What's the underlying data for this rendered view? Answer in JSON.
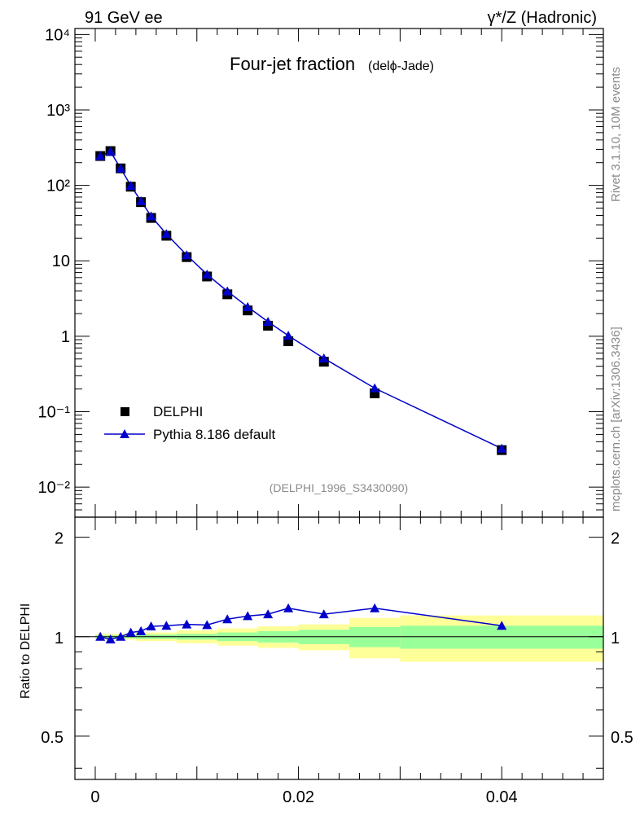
{
  "header": {
    "left": "91 GeV ee",
    "right": "γ*/Z (Hadronic)"
  },
  "side_text": {
    "rivet": "Rivet 3.1.10,  10M events",
    "mcplots": "mcplots.cern.ch [arXiv:1306.3436]"
  },
  "chart_data": [
    {
      "type": "scatter",
      "title": "Four-jet fraction",
      "subtitle": "(delϕ-Jade)",
      "analysis_label": "(DELPHI_1996_S3430090)",
      "yscale": "log",
      "ylim": [
        0.004,
        12000
      ],
      "xlim": [
        -0.002,
        0.05
      ],
      "y_tick_labels": [
        "10⁻²",
        "10⁻¹",
        "1",
        "10",
        "10²",
        "10³",
        "10⁴"
      ],
      "legend_position": "bottom-left",
      "series": [
        {
          "name": "DELPHI",
          "marker": "square",
          "color": "#000000",
          "x": [
            0.0005,
            0.0015,
            0.0025,
            0.0035,
            0.0045,
            0.0055,
            0.007,
            0.009,
            0.011,
            0.013,
            0.015,
            0.017,
            0.019,
            0.0225,
            0.0275,
            0.04
          ],
          "values": [
            245,
            285,
            168,
            96,
            60,
            37,
            21.5,
            11.2,
            6.2,
            3.6,
            2.2,
            1.38,
            0.86,
            0.46,
            0.175,
            0.031
          ]
        },
        {
          "name": "Pythia 8.186 default",
          "marker": "triangle",
          "color": "#0000cc",
          "x": [
            0.0005,
            0.0015,
            0.0025,
            0.0035,
            0.0045,
            0.0055,
            0.007,
            0.009,
            0.011,
            0.013,
            0.015,
            0.017,
            0.019,
            0.0225,
            0.0275,
            0.04
          ],
          "values": [
            245,
            280,
            168,
            99,
            62,
            39,
            22.7,
            11.9,
            6.6,
            3.95,
            2.45,
            1.56,
            1.02,
            0.51,
            0.205,
            0.0325
          ]
        }
      ]
    },
    {
      "type": "line",
      "ylabel": "Ratio to DELPHI",
      "xlabel": "",
      "ylim": [
        0.37,
        2.3
      ],
      "xlim": [
        -0.002,
        0.05
      ],
      "x_tick_labels": [
        "0",
        "0.02",
        "0.04"
      ],
      "y_tick_labels": [
        "0.5",
        "1",
        "2"
      ],
      "series": [
        {
          "name": "Pythia 8.186 default",
          "color": "#0000cc",
          "x": [
            0.0005,
            0.0015,
            0.0025,
            0.0035,
            0.0045,
            0.0055,
            0.007,
            0.009,
            0.011,
            0.013,
            0.015,
            0.017,
            0.019,
            0.0225,
            0.0275,
            0.04
          ],
          "values": [
            1.0,
            0.982,
            1.0,
            1.03,
            1.04,
            1.075,
            1.08,
            1.09,
            1.085,
            1.13,
            1.155,
            1.17,
            1.22,
            1.17,
            1.22,
            1.08
          ]
        }
      ],
      "bands": [
        {
          "x0": 0.0,
          "x1": 0.004,
          "inner": [
            0.99,
            1.01
          ],
          "outer": [
            0.98,
            1.02
          ]
        },
        {
          "x0": 0.004,
          "x1": 0.008,
          "inner": [
            0.985,
            1.015
          ],
          "outer": [
            0.97,
            1.03
          ]
        },
        {
          "x0": 0.008,
          "x1": 0.012,
          "inner": [
            0.98,
            1.02
          ],
          "outer": [
            0.955,
            1.045
          ]
        },
        {
          "x0": 0.012,
          "x1": 0.016,
          "inner": [
            0.97,
            1.03
          ],
          "outer": [
            0.94,
            1.06
          ]
        },
        {
          "x0": 0.016,
          "x1": 0.02,
          "inner": [
            0.96,
            1.04
          ],
          "outer": [
            0.925,
            1.075
          ]
        },
        {
          "x0": 0.02,
          "x1": 0.025,
          "inner": [
            0.95,
            1.05
          ],
          "outer": [
            0.91,
            1.09
          ]
        },
        {
          "x0": 0.025,
          "x1": 0.03,
          "inner": [
            0.93,
            1.07
          ],
          "outer": [
            0.86,
            1.14
          ]
        },
        {
          "x0": 0.03,
          "x1": 0.05,
          "inner": [
            0.92,
            1.08
          ],
          "outer": [
            0.84,
            1.16
          ]
        }
      ]
    }
  ]
}
